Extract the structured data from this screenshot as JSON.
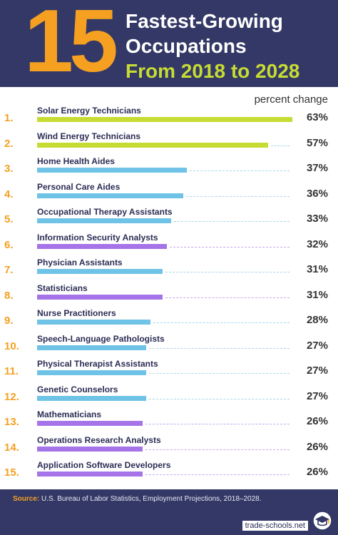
{
  "header": {
    "number": "15",
    "title_line1": "Fastest-Growing",
    "title_line2": "Occupations",
    "title_line3": "From 2018 to 2028"
  },
  "colors": {
    "header_bg": "#333867",
    "accent_orange": "#f5a021",
    "accent_lime": "#c7dc33",
    "energy": "#c7dc33",
    "healthcare": "#6ec3e6",
    "tech_math": "#a574e8"
  },
  "chart_data": {
    "type": "bar",
    "orientation": "horizontal",
    "unit_label": "percent change",
    "xlim": [
      0,
      63
    ],
    "categories": [
      "Solar Energy Technicians",
      "Wind Energy Technicians",
      "Home Health Aides",
      "Personal Care Aides",
      "Occupational Therapy Assistants",
      "Information Security Analysts",
      "Physician Assistants",
      "Statisticians",
      "Nurse Practitioners",
      "Speech-Language Pathologists",
      "Physical Therapist Assistants",
      "Genetic Counselors",
      "Mathematicians",
      "Operations Research Analysts",
      "Application Software Developers"
    ],
    "ranks": [
      "1.",
      "2.",
      "3.",
      "4.",
      "5.",
      "6.",
      "7.",
      "8.",
      "9.",
      "10.",
      "11.",
      "12.",
      "13.",
      "14.",
      "15."
    ],
    "values": [
      63,
      57,
      37,
      36,
      33,
      32,
      31,
      31,
      28,
      27,
      27,
      27,
      26,
      26,
      26
    ],
    "value_labels": [
      "63%",
      "57%",
      "37%",
      "36%",
      "33%",
      "32%",
      "31%",
      "31%",
      "28%",
      "27%",
      "27%",
      "27%",
      "26%",
      "26%",
      "26%"
    ],
    "bar_colors": [
      "#c7dc33",
      "#c7dc33",
      "#6ec3e6",
      "#6ec3e6",
      "#6ec3e6",
      "#a574e8",
      "#6ec3e6",
      "#a574e8",
      "#6ec3e6",
      "#6ec3e6",
      "#6ec3e6",
      "#6ec3e6",
      "#a574e8",
      "#a574e8",
      "#a574e8"
    ]
  },
  "footer": {
    "source_key": "Source:",
    "source_text": "U.S. Bureau of Labor Statistics, Employment Projections, 2018–2028.",
    "site": "trade-schools.net"
  }
}
